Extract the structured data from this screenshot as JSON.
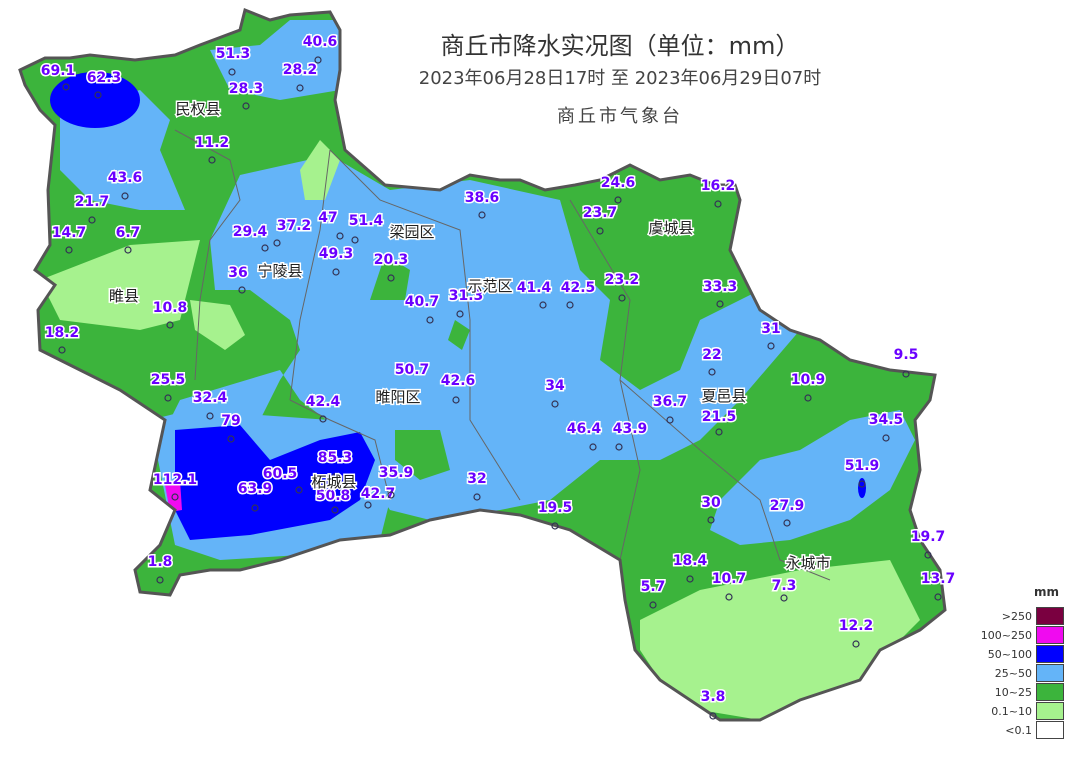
{
  "header": {
    "title": "商丘市降水实况图（单位：mm）",
    "period": "2023年06月28日17时  至  2023年06月29日07时",
    "issuer": "商丘市气象台"
  },
  "legend": {
    "unit": "mm",
    "items": [
      {
        "label": ">250",
        "color": "#7a0040"
      },
      {
        "label": "100~250",
        "color": "#f00af0"
      },
      {
        "label": "50~100",
        "color": "#0000ff"
      },
      {
        "label": "25~50",
        "color": "#64b4f8"
      },
      {
        "label": "10~25",
        "color": "#3cb43c"
      },
      {
        "label": "0.1~10",
        "color": "#a6f28e"
      },
      {
        "label": "<0.1",
        "color": "#ffffff"
      }
    ]
  },
  "counties": [
    "民权县",
    "梁园区",
    "宁陵县",
    "睢县",
    "示范区",
    "虞城县",
    "睢阳区",
    "夏邑县",
    "柘城县",
    "永城市"
  ],
  "stations": [
    "69.1",
    "62.3",
    "51.3",
    "40.6",
    "28.2",
    "28.3",
    "11.2",
    "43.6",
    "21.7",
    "14.7",
    "6.7",
    "29.4",
    "37.2",
    "47",
    "51.4",
    "49.3",
    "20.3",
    "36",
    "10.8",
    "18.2",
    "38.6",
    "24.6",
    "16.2",
    "23.7",
    "23.2",
    "41.4",
    "42.5",
    "40.7",
    "31.3",
    "33.3",
    "31",
    "22",
    "9.5",
    "10.9",
    "25.5",
    "32.4",
    "42.4",
    "50.7",
    "42.6",
    "34",
    "36.7",
    "21.5",
    "34.5",
    "79",
    "46.4",
    "43.9",
    "85.3",
    "60.5",
    "112.1",
    "63.9",
    "50.8",
    "42.7",
    "35.9",
    "32",
    "51.9",
    "19.5",
    "30",
    "27.9",
    "19.7",
    "18.4",
    "1.8",
    "5.7",
    "10.7",
    "7.3",
    "13.7",
    "12.2",
    "3.8"
  ]
}
